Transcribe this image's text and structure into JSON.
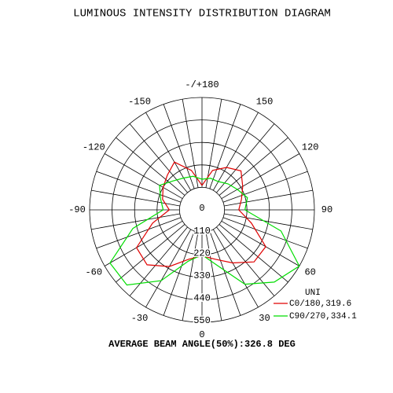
{
  "chart_data": {
    "type": "polar",
    "title": "LUMINOUS INTENSITY DISTRIBUTION DIAGRAM",
    "footer": "AVERAGE BEAM ANGLE(50%):326.8 DEG",
    "legend_title": "UNI",
    "rlim": [
      0,
      550
    ],
    "rticks": [
      0,
      110,
      220,
      330,
      440,
      550
    ],
    "angle_ticks": [
      {
        "value": 180,
        "label": "-/+180"
      },
      -150,
      -120,
      -90,
      -60,
      -30,
      0,
      30,
      60,
      90,
      120,
      150
    ],
    "grid_angles": [
      -170,
      -160,
      -150,
      -140,
      -130,
      -120,
      -110,
      -100,
      -90,
      -80,
      -70,
      -60,
      -50,
      -40,
      -30,
      -20,
      -10,
      0,
      10,
      20,
      30,
      40,
      50,
      60,
      70,
      80,
      90,
      100,
      110,
      120,
      130,
      140,
      150,
      160,
      170,
      180
    ],
    "angles": [
      -180,
      -165,
      -150,
      -135,
      -120,
      -105,
      -90,
      -75,
      -60,
      -45,
      -30,
      -15,
      0,
      15,
      30,
      45,
      60,
      75,
      90,
      105,
      120,
      135,
      150,
      165,
      180
    ],
    "series": [
      {
        "name": "C0/180,319.6",
        "color": "#e00000",
        "values": [
          120,
          200,
          270,
          240,
          220,
          200,
          160,
          250,
          370,
          380,
          320,
          250,
          225,
          250,
          300,
          360,
          360,
          250,
          180,
          200,
          230,
          270,
          240,
          200,
          120
        ]
      },
      {
        "name": "C90/270,334.1",
        "color": "#00dd00",
        "values": [
          150,
          170,
          180,
          200,
          240,
          210,
          190,
          350,
          520,
          520,
          400,
          260,
          220,
          280,
          420,
          500,
          550,
          400,
          210,
          230,
          200,
          180,
          160,
          160,
          150
        ]
      }
    ]
  }
}
